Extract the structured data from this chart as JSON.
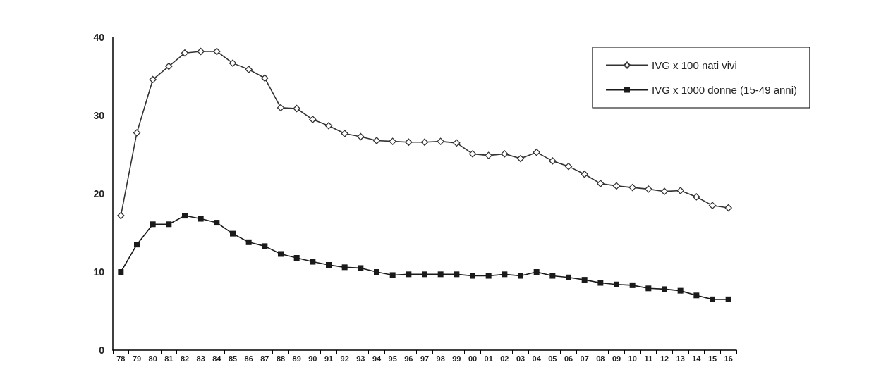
{
  "chart_data": {
    "type": "line",
    "categories": [
      "78",
      "79",
      "80",
      "81",
      "82",
      "83",
      "84",
      "85",
      "86",
      "87",
      "88",
      "89",
      "90",
      "91",
      "92",
      "93",
      "94",
      "95",
      "96",
      "97",
      "98",
      "99",
      "00",
      "01",
      "02",
      "03",
      "04",
      "05",
      "06",
      "07",
      "08",
      "09",
      "10",
      "11",
      "12",
      "13",
      "14",
      "15",
      "16"
    ],
    "series": [
      {
        "name": "IVG x 100 nati vivi",
        "color": "#333333",
        "marker": "diamond",
        "values": [
          17.2,
          27.8,
          34.6,
          36.3,
          38.0,
          38.2,
          38.2,
          36.7,
          35.9,
          34.8,
          31.0,
          30.9,
          29.5,
          28.7,
          27.7,
          27.3,
          26.8,
          26.7,
          26.6,
          26.6,
          26.7,
          26.5,
          25.1,
          24.9,
          25.1,
          24.5,
          25.3,
          24.2,
          23.5,
          22.5,
          21.3,
          21.0,
          20.8,
          20.6,
          20.3,
          20.4,
          19.6,
          18.5,
          18.2
        ]
      },
      {
        "name": "IVG x 1000 donne (15-49 anni)",
        "color": "#1a1a1a",
        "marker": "square",
        "values": [
          10.0,
          13.5,
          16.1,
          16.1,
          17.2,
          16.8,
          16.3,
          14.9,
          13.8,
          13.3,
          12.3,
          11.8,
          11.3,
          10.9,
          10.6,
          10.5,
          10.0,
          9.6,
          9.7,
          9.7,
          9.7,
          9.7,
          9.5,
          9.5,
          9.7,
          9.5,
          10.0,
          9.5,
          9.3,
          9.0,
          8.6,
          8.4,
          8.3,
          7.9,
          7.8,
          7.6,
          7.0,
          6.5,
          6.5
        ]
      }
    ],
    "ylim": [
      0,
      40
    ],
    "yticks": [
      0,
      10,
      20,
      30,
      40
    ],
    "grid": false,
    "legend": "top right",
    "line_style": "solid"
  }
}
